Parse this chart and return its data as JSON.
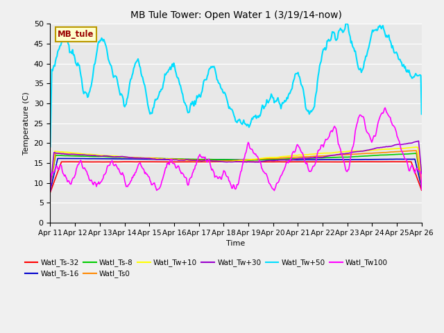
{
  "title": "MB Tule Tower: Open Water 1 (3/19/14-now)",
  "xlabel": "Time",
  "ylabel": "Temperature (C)",
  "ylim": [
    0,
    50
  ],
  "yticks": [
    0,
    5,
    10,
    15,
    20,
    25,
    30,
    35,
    40,
    45,
    50
  ],
  "bg_color": "#e8e8e8",
  "fig_bg_color": "#f0f0f0",
  "legend_label": "MB_tule",
  "legend_bg": "#ffffcc",
  "legend_border": "#bb9900",
  "series": {
    "Watl_Ts-32": {
      "color": "#ff0000",
      "lw": 1.2
    },
    "Watl_Ts-16": {
      "color": "#0000cc",
      "lw": 1.2
    },
    "Watl_Ts-8": {
      "color": "#00cc00",
      "lw": 1.2
    },
    "Watl_Ts0": {
      "color": "#ff8800",
      "lw": 1.2
    },
    "Watl_Tw+10": {
      "color": "#ffff00",
      "lw": 1.2
    },
    "Watl_Tw+30": {
      "color": "#9900cc",
      "lw": 1.2
    },
    "Watl_Tw+50": {
      "color": "#00ddff",
      "lw": 1.5
    },
    "Watl_Tw100": {
      "color": "#ff00ff",
      "lw": 1.2
    }
  },
  "x_tick_labels": [
    "Apr 11",
    "Apr 12",
    "Apr 13",
    "Apr 14",
    "Apr 15",
    "Apr 16",
    "Apr 17",
    "Apr 18",
    "Apr 19",
    "Apr 20",
    "Apr 21",
    "Apr 22",
    "Apr 23",
    "Apr 24",
    "Apr 25",
    "Apr 26"
  ]
}
